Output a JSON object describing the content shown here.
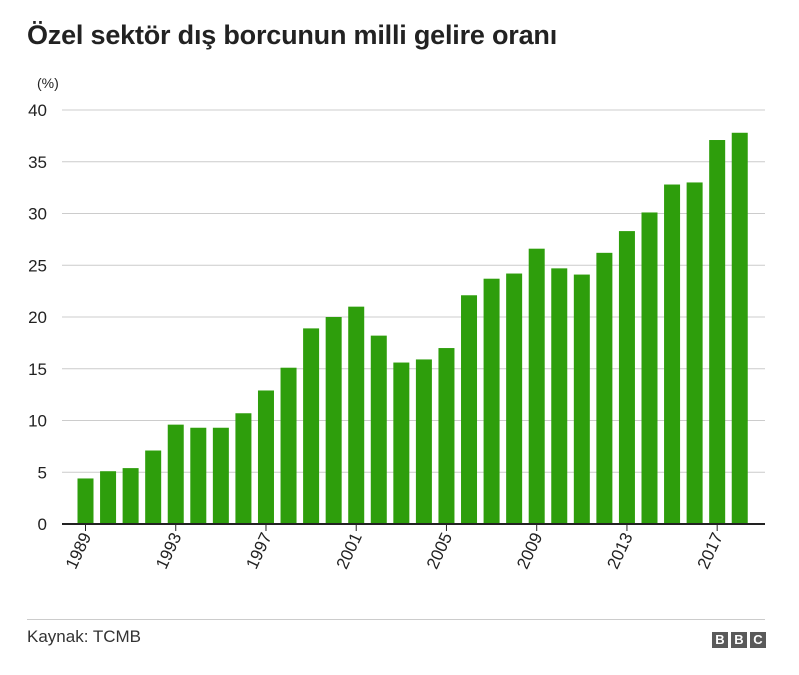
{
  "title": "Özel sektör dış borcunun milli gelire oranı",
  "source": "Kaynak: TCMB",
  "logo_letters": [
    "B",
    "B",
    "C"
  ],
  "colors": {
    "bar": "#2e9e0c",
    "grid": "#cccccc",
    "axis": "#222222",
    "logo_bg": "#5a5a5a"
  },
  "chart_data": {
    "type": "bar",
    "ylabel": "(%)",
    "ylim": [
      0,
      40
    ],
    "yticks": [
      0,
      5,
      10,
      15,
      20,
      25,
      30,
      35,
      40
    ],
    "xtick_labels": [
      "1989",
      "1993",
      "1997",
      "2001",
      "2005",
      "2009",
      "2013",
      "2017"
    ],
    "grid": true,
    "categories": [
      "1989",
      "1990",
      "1991",
      "1992",
      "1993",
      "1994",
      "1995",
      "1996",
      "1997",
      "1998",
      "1999",
      "2000",
      "2001",
      "2002",
      "2003",
      "2004",
      "2005",
      "2006",
      "2007",
      "2008",
      "2009",
      "2010",
      "2011",
      "2012",
      "2013",
      "2014",
      "2015",
      "2016",
      "2017",
      "2018"
    ],
    "values": [
      4.4,
      5.1,
      5.4,
      7.1,
      9.6,
      9.3,
      9.3,
      10.7,
      12.9,
      15.1,
      18.9,
      20.0,
      21.0,
      18.2,
      15.6,
      15.9,
      17.0,
      22.1,
      23.7,
      24.2,
      26.6,
      24.7,
      24.1,
      26.2,
      28.3,
      30.1,
      32.8,
      33.0,
      37.1,
      37.8
    ]
  }
}
